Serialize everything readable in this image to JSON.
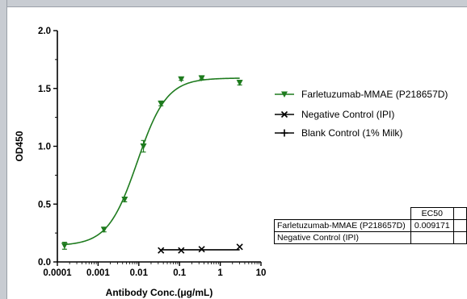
{
  "chart_data": {
    "type": "scatter",
    "title": "",
    "xlabel": "Antibody Conc.(μg/mL)",
    "ylabel": "OD450",
    "x_scale": "log",
    "xlim": [
      0.0001,
      10
    ],
    "ylim": [
      0,
      2.0
    ],
    "x_ticks": [
      "0.0001",
      "0.001",
      "0.01",
      "0.1",
      "1",
      "10"
    ],
    "y_ticks": [
      "0.0",
      "0.5",
      "1.0",
      "1.5",
      "2.0"
    ],
    "legend_position": "right",
    "series": [
      {
        "name": "Farletuzumab-MMAE (P218657D)",
        "marker": "triangle-down",
        "color": "#1e7b1e",
        "points": [
          {
            "x": 0.00015,
            "y": 0.14,
            "err": 0.03
          },
          {
            "x": 0.0014,
            "y": 0.28,
            "err": 0.02
          },
          {
            "x": 0.0045,
            "y": 0.54,
            "err": 0.02
          },
          {
            "x": 0.013,
            "y": 1.0,
            "err": 0.05
          },
          {
            "x": 0.035,
            "y": 1.37,
            "err": 0.02
          },
          {
            "x": 0.11,
            "y": 1.58,
            "err": 0.01
          },
          {
            "x": 0.35,
            "y": 1.59,
            "err": 0.01
          },
          {
            "x": 3.0,
            "y": 1.55,
            "err": 0.02
          }
        ],
        "fit": {
          "bottom": 0.14,
          "top": 1.59,
          "ec50": 0.009171,
          "hill": 1.2
        }
      },
      {
        "name": "Negative Control (IPI)",
        "marker": "x",
        "color": "#000000",
        "points": [
          {
            "x": 0.035,
            "y": 0.1
          },
          {
            "x": 0.11,
            "y": 0.1
          },
          {
            "x": 0.35,
            "y": 0.11
          },
          {
            "x": 3.0,
            "y": 0.13
          }
        ],
        "fit_line": [
          0.035,
          3.0,
          0.105
        ]
      },
      {
        "name": "Blank Control (1% Milk)",
        "marker": "plus",
        "color": "#000000",
        "points": []
      }
    ],
    "ec50_table": {
      "header": [
        "",
        "EC50",
        ""
      ],
      "rows": [
        [
          "Farletuzumab-MMAE (P218657D)",
          "0.009171",
          ""
        ],
        [
          "Negative Control (IPI)",
          "",
          ""
        ]
      ]
    }
  }
}
